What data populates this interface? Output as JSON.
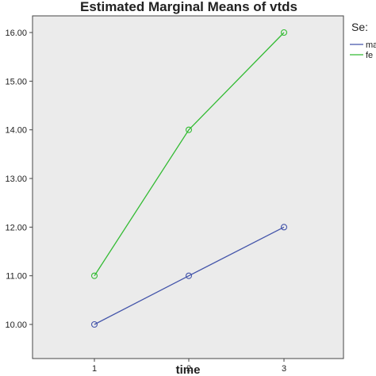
{
  "chart_data": {
    "type": "line",
    "title": "Estimated Marginal Means of vtds",
    "xlabel": "time",
    "ylabel": "",
    "categories": [
      "1",
      "2",
      "3"
    ],
    "y_ticks": [
      "10.00",
      "11.00",
      "12.00",
      "13.00",
      "14.00",
      "15.00",
      "16.00"
    ],
    "ylim": [
      9.8,
      16.5
    ],
    "grid": false,
    "legend": {
      "title": "Se:",
      "placement": "right"
    },
    "series": [
      {
        "name": "ma",
        "values": [
          10,
          11,
          12
        ],
        "color": "#4455aa"
      },
      {
        "name": "fe",
        "values": [
          11,
          14,
          16
        ],
        "color": "#33bb33"
      }
    ],
    "plot_background": "#ebebeb"
  }
}
